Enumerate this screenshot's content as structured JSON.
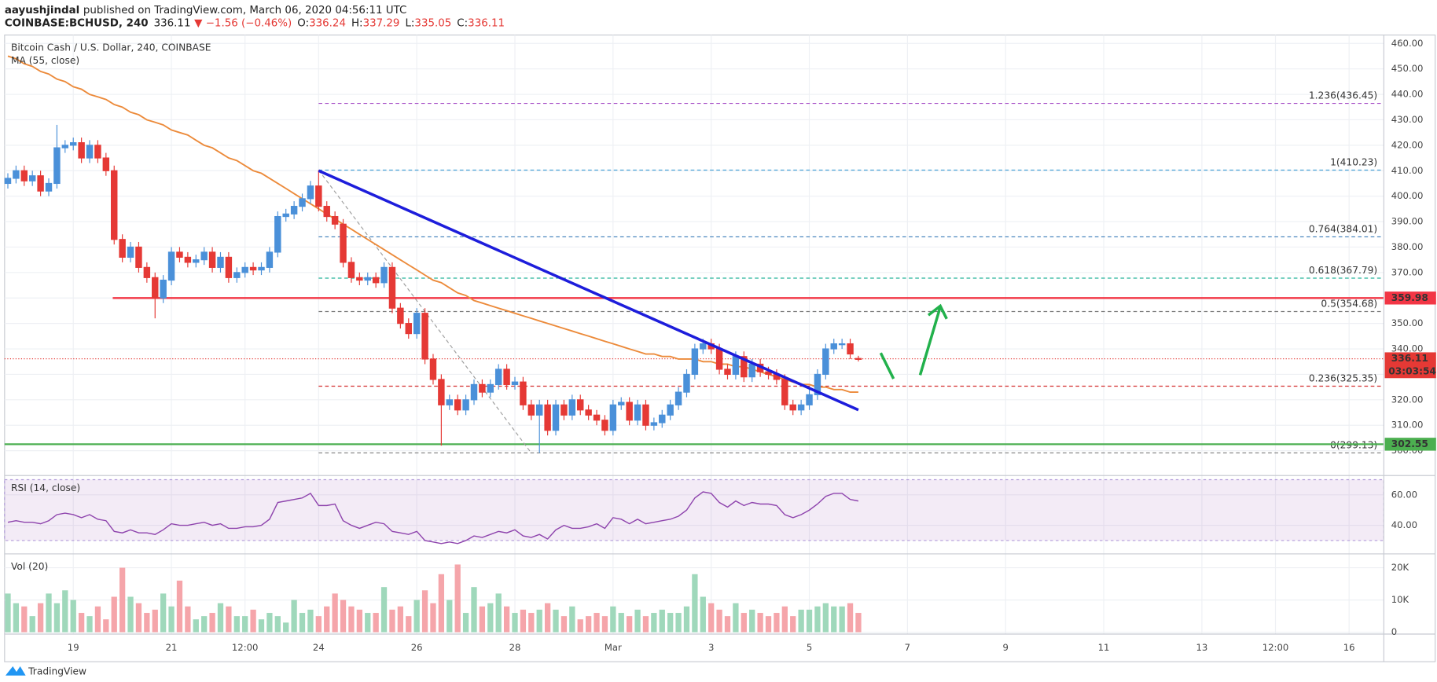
{
  "header": {
    "author": "aayushjindal",
    "published": "published on TradingView.com, March 06, 2020 04:56:11 UTC",
    "symbol": "COINBASE:BCHUSD, 240",
    "last": "336.11",
    "change": "▼ −1.56 (−0.46%)",
    "ohlc": [
      {
        "key": "O:",
        "value": "336.24"
      },
      {
        "key": "H:",
        "value": "337.29"
      },
      {
        "key": "L:",
        "value": "335.05"
      },
      {
        "key": "C:",
        "value": "336.11"
      }
    ]
  },
  "footer": {
    "brand": "TradingView"
  },
  "chart_data": {
    "type": "candlestick",
    "title": "Bitcoin Cash / U.S. Dollar, 240, COINBASE",
    "up_color": "#4a90d9",
    "down_color": "#e53935",
    "grid": true,
    "x": [
      -32,
      -28,
      -24,
      -20,
      -16,
      -12,
      -8,
      -4,
      0,
      4,
      8,
      12,
      16,
      20,
      24,
      28,
      32,
      36,
      40,
      44,
      48,
      52,
      56,
      60,
      64,
      68,
      72,
      76,
      80,
      84,
      88,
      92,
      96,
      100,
      104,
      108,
      112,
      116,
      120,
      124,
      128,
      132,
      136,
      140,
      144,
      148,
      152,
      156,
      160,
      164,
      168,
      172,
      176,
      180,
      184,
      188,
      192,
      196,
      200,
      204,
      208,
      212,
      216,
      220,
      224,
      228,
      232,
      236,
      240,
      244,
      248,
      252,
      256,
      260,
      264,
      268,
      272,
      276,
      280,
      284,
      288,
      292,
      296,
      300,
      304,
      308,
      312,
      316,
      320,
      324,
      328,
      332,
      336,
      340,
      344,
      348,
      352,
      356,
      360,
      364,
      368,
      372,
      376,
      380,
      384
    ],
    "open": [
      405,
      407,
      410,
      406,
      408,
      402,
      405,
      419,
      420,
      421,
      415,
      420,
      415,
      410,
      383,
      376,
      380,
      372,
      368,
      360,
      367,
      378,
      376,
      374,
      375,
      378,
      372,
      376,
      368,
      370,
      372,
      371,
      372,
      378,
      392,
      393,
      396,
      399,
      404,
      396,
      392,
      389,
      374,
      368,
      367,
      368,
      366,
      372,
      356,
      350,
      346,
      354,
      336,
      328,
      318,
      320,
      316,
      320,
      326,
      323,
      326,
      332,
      326,
      327,
      318,
      314,
      318,
      308,
      318,
      314,
      320,
      316,
      314,
      312,
      308,
      318,
      319,
      312,
      318,
      310,
      311,
      314,
      318,
      323,
      330,
      340,
      342,
      340,
      332,
      330,
      337,
      329,
      334,
      331,
      330,
      328,
      318,
      316,
      318,
      322,
      330,
      340,
      342,
      342,
      336.24
    ],
    "high": [
      409,
      412,
      412,
      410,
      410,
      407,
      428,
      422,
      423,
      423,
      422,
      422,
      417,
      412,
      385,
      382,
      382,
      374,
      370,
      369,
      380,
      380,
      378,
      377,
      380,
      380,
      378,
      378,
      372,
      374,
      374,
      374,
      380,
      394,
      395,
      398,
      401,
      406,
      410.23,
      398,
      394,
      391,
      376,
      370,
      370,
      370,
      374,
      374,
      358,
      352,
      356,
      356,
      338,
      330,
      322,
      322,
      322,
      328,
      328,
      328,
      334,
      334,
      329,
      329,
      320,
      320,
      320,
      320,
      320,
      322,
      322,
      318,
      316,
      314,
      320,
      321,
      321,
      320,
      320,
      313,
      316,
      320,
      325,
      332,
      342,
      344,
      344,
      342,
      334,
      339,
      339,
      336,
      336,
      333,
      332,
      330,
      320,
      320,
      324,
      332,
      342,
      344,
      344,
      344,
      337.29
    ],
    "low": [
      403,
      405,
      404,
      404,
      400,
      400,
      403,
      417,
      418,
      413,
      413,
      413,
      408,
      381,
      374,
      374,
      370,
      366,
      352,
      358,
      365,
      374,
      372,
      372,
      373,
      370,
      370,
      366,
      366,
      368,
      369,
      369,
      370,
      376,
      390,
      391,
      394,
      397,
      394,
      390,
      387,
      372,
      366,
      365,
      365,
      364,
      364,
      354,
      348,
      344,
      344,
      334,
      326,
      302,
      316,
      314,
      314,
      318,
      321,
      321,
      324,
      324,
      324,
      316,
      312,
      299.13,
      306,
      306,
      312,
      312,
      314,
      312,
      310,
      306,
      306,
      316,
      310,
      310,
      308,
      308,
      309,
      312,
      316,
      321,
      328,
      338,
      338,
      330,
      328,
      328,
      327,
      327,
      329,
      328,
      326,
      316,
      314,
      314,
      316,
      320,
      328,
      338,
      340,
      336,
      335.05
    ],
    "close": [
      407,
      410,
      406,
      408,
      402,
      405,
      419,
      420,
      421,
      415,
      420,
      415,
      410,
      383,
      376,
      380,
      372,
      368,
      360,
      367,
      378,
      376,
      374,
      375,
      378,
      372,
      376,
      368,
      370,
      372,
      371,
      372,
      378,
      392,
      393,
      396,
      399,
      404,
      396,
      392,
      389,
      374,
      368,
      367,
      368,
      366,
      372,
      356,
      350,
      346,
      354,
      336,
      328,
      318,
      320,
      316,
      320,
      326,
      323,
      326,
      332,
      326,
      327,
      318,
      314,
      318,
      308,
      318,
      314,
      320,
      316,
      314,
      312,
      308,
      318,
      319,
      312,
      318,
      310,
      311,
      314,
      318,
      323,
      330,
      340,
      342,
      340,
      332,
      330,
      337,
      329,
      334,
      331,
      330,
      328,
      318,
      316,
      318,
      322,
      330,
      340,
      342,
      342,
      338,
      336.11
    ],
    "xlim": [
      -33.6,
      641
    ],
    "xticks": [
      {
        "value": 0,
        "label": "19"
      },
      {
        "value": 48,
        "label": "21"
      },
      {
        "value": 84,
        "label": "12:00"
      },
      {
        "value": 120,
        "label": "24"
      },
      {
        "value": 168,
        "label": "26"
      },
      {
        "value": 216,
        "label": "28"
      },
      {
        "value": 264,
        "label": "Mar"
      },
      {
        "value": 312,
        "label": "3"
      },
      {
        "value": 360,
        "label": "5"
      },
      {
        "value": 408,
        "label": "7"
      },
      {
        "value": 456,
        "label": "9"
      },
      {
        "value": 504,
        "label": "11"
      },
      {
        "value": 552,
        "label": "13"
      },
      {
        "value": 588,
        "label": "12:00"
      },
      {
        "value": 624,
        "label": "16"
      }
    ],
    "ylim": [
      290.6,
      463.3
    ],
    "yticks": [
      {
        "value": 300,
        "label": "300.00"
      },
      {
        "value": 310,
        "label": "310.00"
      },
      {
        "value": 320,
        "label": "320.00"
      },
      {
        "value": 330,
        "label": "330.00"
      },
      {
        "value": 340,
        "label": "340.00"
      },
      {
        "value": 350,
        "label": "350.00"
      },
      {
        "value": 360,
        "label": "360.00"
      },
      {
        "value": 370,
        "label": "370.00"
      },
      {
        "value": 380,
        "label": "380.00"
      },
      {
        "value": 390,
        "label": "390.00"
      },
      {
        "value": 400,
        "label": "400.00"
      },
      {
        "value": 410,
        "label": "410.00"
      },
      {
        "value": 420,
        "label": "420.00"
      },
      {
        "value": 430,
        "label": "430.00"
      },
      {
        "value": 440,
        "label": "440.00"
      },
      {
        "value": 450,
        "label": "450.00"
      },
      {
        "value": 460,
        "label": "460.00"
      }
    ],
    "ma": {
      "name": "MA (55, close)",
      "color": "#ec8a3a",
      "values": [
        455,
        454,
        452,
        451,
        449,
        448,
        446,
        445,
        443,
        442,
        440,
        439,
        438,
        436,
        435,
        433,
        432,
        430,
        429,
        428,
        426,
        425,
        424,
        422,
        420,
        419,
        417,
        415,
        414,
        412,
        410,
        409,
        407,
        405,
        403,
        401,
        399,
        397,
        395,
        393,
        391,
        389,
        387,
        385,
        383,
        381,
        379,
        377,
        375,
        373,
        371,
        369,
        367,
        366,
        364,
        362,
        361,
        359,
        358,
        357,
        356,
        355,
        354,
        353,
        352,
        351,
        350,
        349,
        348,
        347,
        346,
        345,
        344,
        343,
        342,
        341,
        340,
        339,
        338,
        338,
        337,
        337,
        336,
        336,
        336,
        335,
        335,
        334,
        334,
        333,
        333,
        332,
        331,
        330,
        329,
        328,
        327,
        326,
        326,
        325,
        325,
        324,
        324,
        323,
        323
      ]
    },
    "levels": [
      {
        "value": 359.98,
        "label": "359.98",
        "color": "#f23645",
        "x_start": 19.3
      },
      {
        "value": 302.55,
        "label": "302.55",
        "color": "#4caf50",
        "x_start": -33.6
      }
    ],
    "fib_start": 120,
    "fib": [
      {
        "value": 436.45,
        "label": "1.236(436.45)",
        "color": "#a347c4"
      },
      {
        "value": 410.23,
        "label": "1(410.23)",
        "color": "#4aa3d8"
      },
      {
        "value": 384.01,
        "label": "0.764(384.01)",
        "color": "#3a7bb8"
      },
      {
        "value": 367.79,
        "label": "0.618(367.79)",
        "color": "#26b39a"
      },
      {
        "value": 354.68,
        "label": "0.5(354.68)",
        "color": "#7a7a7a"
      },
      {
        "value": 325.35,
        "label": "0.236(325.35)",
        "color": "#d32f2f"
      },
      {
        "value": 299.13,
        "label": "0(299.13)",
        "color": "#7a7a7a"
      }
    ],
    "last_price": {
      "value": 336.11,
      "label": "336.11",
      "countdown": "03:03:54",
      "color": "#e53935"
    },
    "trendline": {
      "x": [
        120,
        384
      ],
      "y": [
        410,
        316
      ],
      "color": "#1d1ddb"
    },
    "fib_diagonal": {
      "x": [
        120,
        224
      ],
      "y": [
        410.23,
        299.13
      ],
      "color": "#9e9e9e"
    },
    "rsi": {
      "title": "RSI (14, close)",
      "color": "#8e44ad",
      "band": [
        30,
        70
      ],
      "ylim": [
        21.8,
        72.1
      ],
      "yticks": [
        {
          "value": 40,
          "label": "40.00"
        },
        {
          "value": 60,
          "label": "60.00"
        }
      ],
      "values": [
        42,
        43,
        42,
        42,
        41,
        43,
        47,
        48,
        47,
        45,
        47,
        44,
        43,
        36,
        35,
        37,
        35,
        35,
        34,
        37,
        41,
        40,
        40,
        41,
        42,
        40,
        41,
        38,
        38,
        39,
        39,
        40,
        44,
        55,
        56,
        57,
        58,
        61,
        53,
        53,
        54,
        43,
        40,
        38,
        40,
        42,
        41,
        36,
        35,
        34,
        36,
        30,
        29,
        28,
        29,
        28,
        30,
        33,
        32,
        34,
        36,
        35,
        37,
        33,
        32,
        34,
        31,
        37,
        40,
        38,
        38,
        39,
        41,
        38,
        45,
        44,
        41,
        44,
        41,
        42,
        43,
        44,
        46,
        50,
        58,
        62,
        61,
        55,
        52,
        56,
        53,
        55,
        54,
        54,
        53,
        47,
        45,
        47,
        50,
        54,
        59,
        61,
        61,
        57,
        56
      ]
    },
    "volume": {
      "title": "Vol (20)",
      "up_color": "#9fd8bb",
      "down_color": "#f5a5aa",
      "ylim": [
        -570,
        24000
      ],
      "yticks": [
        0,
        {
          "value": 10000,
          "label": "10K"
        },
        {
          "value": 20000,
          "label": "20K"
        }
      ],
      "values": [
        12000,
        9000,
        8000,
        5000,
        9000,
        12000,
        9000,
        13000,
        10000,
        6000,
        5000,
        8000,
        4000,
        11000,
        20000,
        11000,
        9000,
        6000,
        7000,
        12000,
        8000,
        16000,
        8000,
        4000,
        5000,
        6000,
        9000,
        8000,
        5000,
        5000,
        7000,
        4000,
        6000,
        5000,
        3000,
        10000,
        6000,
        7000,
        5000,
        8000,
        12000,
        10000,
        8000,
        7000,
        6000,
        6000,
        14000,
        7000,
        8000,
        5000,
        10000,
        13000,
        9000,
        18000,
        10000,
        21000,
        6000,
        14000,
        8000,
        9000,
        12000,
        8000,
        6000,
        7000,
        6000,
        7000,
        9000,
        7000,
        5000,
        8000,
        4000,
        5000,
        6000,
        5000,
        8000,
        6000,
        5000,
        7000,
        5000,
        6000,
        7000,
        6000,
        6000,
        8000,
        18000,
        11000,
        9000,
        7000,
        5000,
        9000,
        6000,
        7000,
        6000,
        5000,
        6000,
        8000,
        5000,
        7000,
        7000,
        8000,
        9000,
        8000,
        8000,
        9000,
        6000
      ]
    }
  }
}
